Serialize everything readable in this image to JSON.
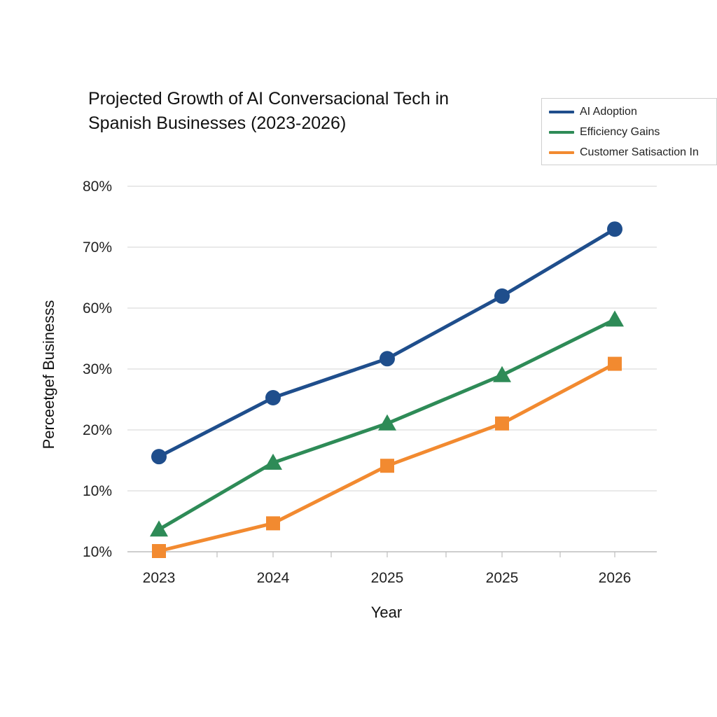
{
  "chart_data": {
    "type": "line",
    "title": [
      "Projected Growth of AI Conversacional Tech in",
      "Spanish Businesses (2023-2026)"
    ],
    "xlabel": "Year",
    "ylabel": "Perceetgef Businesss",
    "categories": [
      "2023",
      "2024",
      "2025",
      "2025",
      "2026"
    ],
    "y_tick_labels": [
      "10%",
      "10%",
      "20%",
      "30%",
      "60%",
      "70%",
      "80%"
    ],
    "grid": true,
    "legend_position": "top-right",
    "series": [
      {
        "name": "AI Adoption",
        "color": "#1f4e8c",
        "marker": "circle",
        "values": [
          "15.5%",
          "25%",
          "34%",
          "63%",
          "74%"
        ]
      },
      {
        "name": "Efficiency Gains",
        "color": "#2e8b57",
        "marker": "triangle",
        "values": [
          "8.5%",
          "14.5%",
          "21%",
          "28.5%",
          "57%"
        ]
      },
      {
        "name": "Customer Satisaction In",
        "color": "#f28a30",
        "marker": "square",
        "values": [
          "5%",
          "9.5%",
          "14%",
          "21%",
          "31%"
        ]
      }
    ]
  }
}
